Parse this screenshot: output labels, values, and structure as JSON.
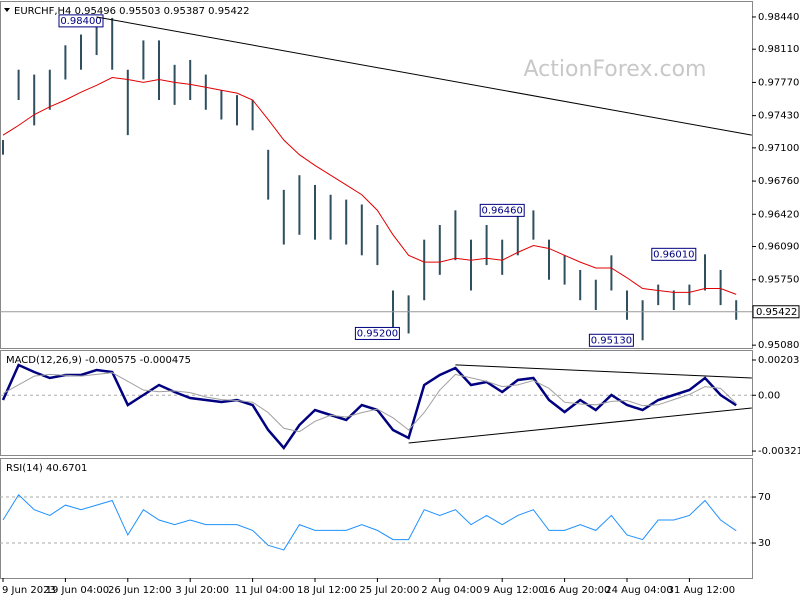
{
  "chart_data": [
    {
      "type": "ohlc",
      "title": "EURCHF,H4 0.95496 0.95503 0.95387 0.95422",
      "watermark": "ActionForex.com",
      "color": "#2f4f5f",
      "high": [
        0.9718,
        0.979,
        0.9785,
        0.979,
        0.9815,
        0.9826,
        0.9836,
        0.9843,
        0.979,
        0.982,
        0.982,
        0.9795,
        0.98,
        0.9785,
        0.9769,
        0.9764,
        0.9759,
        0.9708,
        0.9667,
        0.9682,
        0.9672,
        0.9662,
        0.9657,
        0.9652,
        0.9631,
        0.9564,
        0.9559,
        0.9616,
        0.9631,
        0.9646,
        0.9616,
        0.9631,
        0.9616,
        0.9641,
        0.9646,
        0.9616,
        0.96,
        0.9585,
        0.9575,
        0.96,
        0.9564,
        0.9554,
        0.957,
        0.9564,
        0.957,
        0.9601,
        0.9585,
        0.9554
      ],
      "low": [
        0.9703,
        0.9759,
        0.9733,
        0.9749,
        0.978,
        0.979,
        0.9805,
        0.979,
        0.9723,
        0.978,
        0.9759,
        0.9754,
        0.9759,
        0.9749,
        0.9739,
        0.9733,
        0.9728,
        0.9657,
        0.9611,
        0.9621,
        0.9616,
        0.9616,
        0.9611,
        0.96,
        0.959,
        0.9524,
        0.952,
        0.9554,
        0.958,
        0.9595,
        0.9564,
        0.959,
        0.958,
        0.96,
        0.9616,
        0.9575,
        0.957,
        0.9554,
        0.9544,
        0.9564,
        0.9534,
        0.9513,
        0.9549,
        0.9544,
        0.9549,
        0.9564,
        0.9549,
        0.9534
      ],
      "moving_average": {
        "color": "#e00000",
        "values": [
          0.9723,
          0.9733,
          0.9744,
          0.9752,
          0.9759,
          0.9767,
          0.9774,
          0.9782,
          0.978,
          0.9777,
          0.978,
          0.9777,
          0.9775,
          0.9772,
          0.9769,
          0.9766,
          0.9759,
          0.9739,
          0.9718,
          0.9703,
          0.9692,
          0.9682,
          0.9672,
          0.9662,
          0.9646,
          0.9621,
          0.96,
          0.9593,
          0.9593,
          0.9597,
          0.9595,
          0.9597,
          0.9595,
          0.9603,
          0.961,
          0.9607,
          0.96,
          0.9593,
          0.9587,
          0.9587,
          0.9577,
          0.9566,
          0.9564,
          0.9562,
          0.9562,
          0.9566,
          0.9566,
          0.956
        ]
      },
      "last_price": 0.95422,
      "annotations": [
        {
          "label": "0.98400",
          "value": 0.984,
          "index": 5
        },
        {
          "label": "0.96460",
          "value": 0.9646,
          "index": 32
        },
        {
          "label": "0.95200",
          "value": 0.952,
          "index": 24
        },
        {
          "label": "0.95130",
          "value": 0.9513,
          "index": 39
        },
        {
          "label": "0.96010",
          "value": 0.9601,
          "index": 43
        }
      ],
      "trendlines": [
        [
          [
            6,
            0.9844
          ],
          [
            48,
            0.9723
          ]
        ]
      ],
      "ylim": [
        0.95051,
        0.98583
      ],
      "yticks": [
        {
          "value": 0.9844,
          "label": "0.98440"
        },
        {
          "value": 0.9811,
          "label": "0.98110"
        },
        {
          "value": 0.9777,
          "label": "0.97770"
        },
        {
          "value": 0.9743,
          "label": "0.97430"
        },
        {
          "value": 0.971,
          "label": "0.97100"
        },
        {
          "value": 0.9676,
          "label": "0.96760"
        },
        {
          "value": 0.9642,
          "label": "0.96420"
        },
        {
          "value": 0.9609,
          "label": "0.96090"
        },
        {
          "value": 0.9575,
          "label": "0.95750"
        },
        {
          "value": 0.9508,
          "label": "0.95080"
        }
      ]
    },
    {
      "type": "line",
      "title": "MACD(12,26,9) -0.000575 -0.000475",
      "lines": [
        {
          "color": "#000080",
          "width": 2.5,
          "values": [
            -0.000273,
            0.001743,
            0.00134,
            0.000994,
            0.001167,
            0.001167,
            0.001455,
            0.00134,
            -0.000561,
            1.5e-05,
            0.000591,
            0.000188,
            -0.000158,
            -0.000273,
            -0.000388,
            -0.000273,
            -0.000561,
            -0.002001,
            -0.003038,
            -0.001713,
            -0.000849,
            -0.001137,
            -0.001425,
            -0.000561,
            -0.000849,
            -0.002001,
            -0.002462,
            0.000591,
            0.001167,
            0.00157,
            0.000591,
            0.000764,
            0.000188,
            0.000879,
            0.000994,
            -0.000273,
            -0.000964,
            -0.000273,
            -0.000849,
            1.5e-05,
            -0.000561,
            -0.000849,
            -0.000273,
            1.5e-05,
            0.000303,
            0.000994,
            1.5e-05,
            -0.000575
          ]
        },
        {
          "color": "#a0a0a0",
          "width": 1,
          "values": [
            0.0001,
            0.0006,
            0.0011,
            0.0012,
            0.00115,
            0.0011,
            0.0012,
            0.0013,
            0.0008,
            0.0003,
            0.0002,
            0.00025,
            0.00015,
            -0.0001,
            -0.00025,
            -0.0003,
            -0.0004,
            -0.001,
            -0.0019,
            -0.0021,
            -0.0015,
            -0.00115,
            -0.00125,
            -0.001,
            -0.0008,
            -0.0013,
            -0.002,
            -0.001,
            0.0003,
            0.0012,
            0.001,
            0.0008,
            0.0005,
            0.0006,
            0.00085,
            0.0004,
            -0.0004,
            -0.0005,
            -0.00055,
            -0.00035,
            -0.0003,
            -0.0006,
            -0.00055,
            -0.00025,
            5e-05,
            0.0005,
            0.0004,
            -0.000475
          ]
        }
      ],
      "trendlines": [
        [
          [
            29,
            0.00175
          ],
          [
            48,
            0.000994
          ]
        ],
        [
          [
            26,
            -0.00275
          ],
          [
            48,
            -0.000734
          ]
        ]
      ],
      "ylim": [
        -0.003441,
        0.002492
      ],
      "yticks": [
        0.002031,
        {
          "value": 0,
          "label": "0.00"
        },
        -0.003214
      ],
      "grid_tick_indices": [
        1
      ]
    },
    {
      "type": "line",
      "title": "RSI(14) 40.6701",
      "lines": [
        {
          "color": "#1e90ff",
          "width": 1,
          "values": [
            50,
            72,
            59,
            54,
            63,
            59,
            63,
            67,
            37,
            59,
            50,
            46,
            50,
            46,
            46,
            46,
            41,
            28,
            24,
            46,
            41,
            41,
            41,
            46,
            41,
            33,
            33,
            59,
            54,
            59,
            46,
            54,
            46,
            54,
            59,
            41,
            41,
            46,
            41,
            54,
            37,
            33,
            50,
            50,
            54,
            67,
            50,
            40.67
          ]
        }
      ],
      "ylim": [
        -0.4,
        102.2
      ],
      "yticks": [
        70,
        30
      ],
      "grid": true,
      "categories": [
        "9 Jun 2023",
        null,
        null,
        null,
        "19 Jun 04:00",
        null,
        null,
        null,
        "26 Jun 12:00",
        null,
        null,
        null,
        "3 Jul 20:00",
        null,
        null,
        null,
        "11 Jul 04:00",
        null,
        null,
        null,
        "18 Jul 12:00",
        null,
        null,
        null,
        "25 Jul 20:00",
        null,
        null,
        null,
        "2 Aug 04:00",
        null,
        null,
        null,
        "9 Aug 12:00",
        null,
        null,
        null,
        "16 Aug 20:00",
        null,
        null,
        null,
        "24 Aug 04:00",
        null,
        null,
        null,
        "31 Aug 12:00",
        null,
        null,
        null
      ]
    }
  ]
}
